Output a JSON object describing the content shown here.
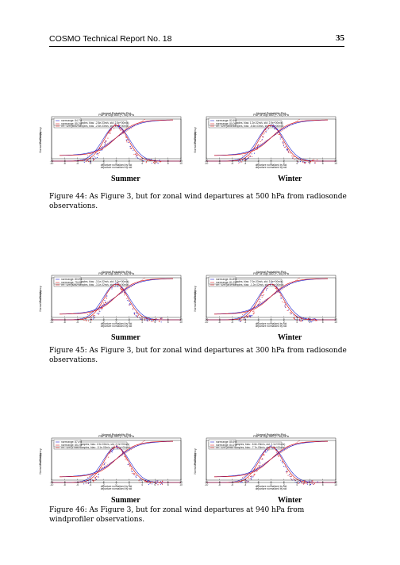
{
  "header": {
    "title": "COSMO Technical Report No. 18",
    "page_number": "35"
  },
  "figures": [
    {
      "caption": "Figure 44: As Figure 3, but for zonal wind departures at 500 hPa from radiosonde observations.",
      "panels": [
        {
          "season": "Summer",
          "pdf_title": "PDF of U@ 500 (+- 10) hPa",
          "xlabel": "departure normalized by std",
          "ylabel": "Normalized Frequency",
          "legend": [
            "03 - 06h (8052 samples, bias: -2.8e-03m/s, std: 2.5e+00m/s)",
            "09 - 12h (8052 samples, bias: -2.5e-03m/s, std: 2.6e+00m/s)"
          ],
          "nd_title": "Normal Probability Plot",
          "nd_ylabel": "Probability",
          "nd_legend": [
            "normrange: 84.7%",
            "normrange: 85.2%"
          ],
          "xticks": [
            "-10",
            "-8",
            "-6",
            "-4",
            "-2",
            "0",
            "2",
            "4",
            "6",
            "8",
            "10"
          ]
        },
        {
          "season": "Winter",
          "pdf_title": "PDF of U@ 500 (+- 10) hPa",
          "xlabel": "departure normalized by std",
          "ylabel": "Normalized Frequency",
          "legend": [
            "03 - 06h (2608 samples, bias: 1.2e-02m/s, std: 2.9e+00m/s)",
            "09 - 12h (2608 samples, bias: -6.6e-03m/s, std: 3.2e+00m/s)"
          ],
          "nd_title": "Normal Probability Plot",
          "nd_ylabel": "Probability",
          "nd_legend": [
            "normrange: 82.6%",
            "normrange: 80.0%"
          ],
          "xticks": [
            "-10",
            "-8",
            "-6",
            "-4",
            "-2",
            "0",
            "2",
            "4",
            "6",
            "8",
            "10"
          ]
        }
      ]
    },
    {
      "caption": "Figure 45: As Figure 3, but for zonal wind departures at 300 hPa from radiosonde observations.",
      "panels": [
        {
          "season": "Summer",
          "pdf_title": "PDF of U@ 300 (+- 10) hPa",
          "xlabel": "departure normalized by std",
          "ylabel": "Normalized Frequency",
          "legend": [
            "03 - 06h (8282 samples, bias: -3.1e-02m/s, std: 3.2e+00m/s)",
            "09 - 12h (8282 samples, bias: -3.1e-02m/s, std: 3.5e+00m/s)"
          ],
          "nd_title": "Normal Probability Plot",
          "nd_ylabel": "Probability",
          "nd_legend": [
            "normrange: 80.8%",
            "normrange: 75.6%"
          ],
          "xticks": [
            "-10",
            "-8",
            "-6",
            "-4",
            "-2",
            "0",
            "2",
            "4",
            "6",
            "8",
            "10"
          ]
        },
        {
          "season": "Winter",
          "pdf_title": "PDF of U@ 300 (+- 10) hPa",
          "xlabel": "departure normalized by std",
          "ylabel": "Normalized Frequency",
          "legend": [
            "03 - 06h (2619 samples, bias: 7.0e-03m/s, std: 3.9e+00m/s)",
            "09 - 12h (2619 samples, bias: -1.2e-02m/s, std: 4.1e+00m/s)"
          ],
          "nd_title": "Normal Probability Plot",
          "nd_ylabel": "Probability",
          "nd_legend": [
            "normrange: 84.8%",
            "normrange: 81.2%"
          ],
          "xticks": [
            "-10",
            "-8",
            "-6",
            "-4",
            "-2",
            "0",
            "2",
            "4",
            "6",
            "8",
            "10"
          ]
        }
      ]
    },
    {
      "caption": "Figure 46: As Figure 3, but for zonal wind departures at 940 hPa from windprofiler observations.",
      "panels": [
        {
          "season": "Summer",
          "pdf_title": "PDF of U@ 940 (+- 10) hPa",
          "xlabel": "departure normalized by std",
          "ylabel": "Normalized Frequency",
          "legend": [
            "03 - 06h (17580 samples, bias: 1.5e-02m/s, std: 2.0e+00m/s)",
            "09 - 12h (17580 samples, bias: -3.1e-02m/s, std: 2.1e+00m/s)"
          ],
          "nd_title": "Normal Probability Plot",
          "nd_ylabel": "Probability",
          "nd_legend": [
            "normrange: 87.4%",
            "normrange: 85.1%"
          ],
          "xticks": [
            "-10",
            "-8",
            "-6",
            "-4",
            "-2",
            "0",
            "2",
            "4",
            "6",
            "8",
            "10"
          ]
        },
        {
          "season": "Winter",
          "pdf_title": "PDF of U@ 940 (+- 10) hPa",
          "xlabel": "departure normalized by std",
          "ylabel": "Normalized Frequency",
          "legend": [
            "03 - 06h (19987 samples, bias: -6.6e-03m/s, std: 2.1e+00m/s)",
            "09 - 12h (19987 samples, bias: -7.7e-03m/s, std: 2.2e+00m/s)"
          ],
          "nd_title": "Normal Probability Plot",
          "nd_ylabel": "Probability",
          "nd_legend": [
            "normrange: 85.5%",
            "normrange: 84.1%"
          ],
          "xticks": [
            "-10",
            "-8",
            "-6",
            "-4",
            "-2",
            "0",
            "2",
            "4",
            "6",
            "8",
            "10"
          ]
        }
      ]
    }
  ],
  "colors": {
    "series1": "#2222cc",
    "series2": "#dd2222",
    "fit": "#cc0000"
  }
}
